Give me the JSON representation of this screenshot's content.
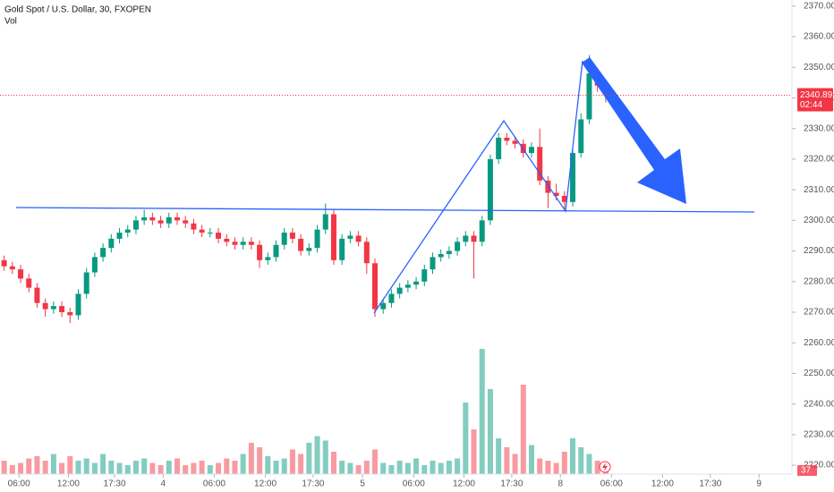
{
  "chart_data": {
    "type": "candlestick",
    "title": "Gold Spot / U.S. Dollar, 30, FXOPEN",
    "volume_label": "Vol",
    "countdown": "02:44",
    "up_color": "#089981",
    "down_color": "#f23645",
    "open": [
      2287,
      2285,
      2284,
      2281,
      2278,
      2273,
      2271,
      2272,
      2270,
      2269,
      2276,
      2283,
      2288,
      2291,
      2294,
      2296,
      2297,
      2300,
      2301,
      2300,
      2299,
      2301,
      2300,
      2299,
      2297,
      2296,
      2296,
      2294,
      2293,
      2292,
      2293,
      2292,
      2287,
      2288,
      2292,
      2296,
      2294,
      2290,
      2291,
      2297,
      2302,
      2287,
      2294,
      2295,
      2293,
      2286,
      2271,
      2273,
      2276,
      2278,
      2279,
      2280,
      2284,
      2288,
      2289,
      2290,
      2293,
      2295,
      2293,
      2300,
      2320,
      2327,
      2326,
      2325,
      2322,
      2324,
      2313,
      2309,
      2308,
      2306,
      2322,
      2333,
      2348,
      2344
    ],
    "high": [
      2288.5,
      2286.5,
      2285.5,
      2282.5,
      2279.5,
      2274.5,
      2273.5,
      2273.5,
      2271.5,
      2277.5,
      2284.5,
      2289.5,
      2292.5,
      2295.5,
      2297.5,
      2298.5,
      2301.5,
      2303.5,
      2302.5,
      2301.5,
      2302.5,
      2302.5,
      2301.5,
      2300.5,
      2298.5,
      2297.5,
      2297.5,
      2295.5,
      2294.5,
      2294.5,
      2294.5,
      2293.5,
      2289.5,
      2293.5,
      2297.5,
      2297.5,
      2295.5,
      2292.5,
      2298.5,
      2305.5,
      2303.5,
      2295.5,
      2296.5,
      2296.5,
      2294.5,
      2287.5,
      2274.5,
      2277.5,
      2279.5,
      2280.5,
      2281.5,
      2285.5,
      2289.5,
      2290.5,
      2291.5,
      2294.5,
      2296.5,
      2296.5,
      2301.5,
      2321.5,
      2328.5,
      2328.5,
      2327.5,
      2326.5,
      2325.5,
      2330,
      2314.5,
      2312,
      2309.5,
      2323.5,
      2335,
      2354,
      2349.5,
      2345.5
    ],
    "low": [
      2283.5,
      2282.5,
      2279.5,
      2276.5,
      2271.5,
      2268.5,
      2269.5,
      2268.5,
      2266.5,
      2267.5,
      2274.5,
      2281.5,
      2286.5,
      2289.5,
      2292.5,
      2294.5,
      2295.5,
      2298.5,
      2298.5,
      2297.5,
      2297.5,
      2298.5,
      2297.5,
      2295.5,
      2294.5,
      2294.5,
      2292.5,
      2291.5,
      2290.5,
      2290.5,
      2290.5,
      2284.5,
      2285.5,
      2286.5,
      2290.5,
      2292.5,
      2288.5,
      2288.5,
      2289.5,
      2295.5,
      2285.5,
      2285.5,
      2292.5,
      2291.5,
      2282.5,
      2268.5,
      2269.5,
      2271.5,
      2274.5,
      2276.5,
      2277.5,
      2278.5,
      2282.5,
      2286.5,
      2287.5,
      2288.5,
      2291.5,
      2281,
      2291.5,
      2298.5,
      2318.5,
      2324.5,
      2323.5,
      2320.5,
      2320.5,
      2311.5,
      2304,
      2306.5,
      2303,
      2304.5,
      2320.5,
      2331.5,
      2342,
      2338.5
    ],
    "close": [
      2285,
      2284,
      2281,
      2278,
      2273,
      2271,
      2272,
      2270,
      2269,
      2276,
      2283,
      2288,
      2291,
      2294,
      2296,
      2297,
      2300,
      2301,
      2300,
      2299,
      2301,
      2300,
      2299,
      2297,
      2296,
      2296,
      2294,
      2293,
      2292,
      2293,
      2292,
      2287,
      2288,
      2292,
      2296,
      2294,
      2290,
      2291,
      2297,
      2302,
      2287,
      2294,
      2295,
      2293,
      2286,
      2271,
      2273,
      2276,
      2278,
      2279,
      2280,
      2284,
      2288,
      2289,
      2290,
      2293,
      2295,
      2293,
      2300,
      2320,
      2327,
      2326,
      2325,
      2322,
      2324,
      2313,
      2309,
      2308,
      2306,
      2322,
      2333,
      2348,
      2344,
      2340.89
    ],
    "volume": [
      60,
      40,
      50,
      70,
      80,
      60,
      90,
      50,
      80,
      60,
      70,
      50,
      90,
      60,
      50,
      40,
      60,
      70,
      50,
      40,
      60,
      70,
      40,
      50,
      60,
      40,
      50,
      70,
      60,
      90,
      140,
      120,
      80,
      60,
      70,
      110,
      90,
      140,
      170,
      150,
      100,
      60,
      50,
      40,
      60,
      110,
      50,
      40,
      60,
      50,
      70,
      40,
      60,
      50,
      60,
      70,
      320,
      200,
      560,
      380,
      160,
      120,
      90,
      400,
      130,
      70,
      60,
      50,
      100,
      160,
      120,
      90,
      60,
      37
    ],
    "vol_lim": [
      0,
      1200
    ],
    "xlim": [
      -0.5,
      95.6
    ],
    "xticks": [
      {
        "value": 1.8,
        "label": "06:00"
      },
      {
        "value": 7.8,
        "label": "12:00"
      },
      {
        "value": 13.4,
        "label": "17:30"
      },
      {
        "value": 19.3,
        "label": "4"
      },
      {
        "value": 25.5,
        "label": "06:00"
      },
      {
        "value": 31.7,
        "label": "12:00"
      },
      {
        "value": 37.5,
        "label": "17:30"
      },
      {
        "value": 43.5,
        "label": "5"
      },
      {
        "value": 49.7,
        "label": "06:00"
      },
      {
        "value": 55.8,
        "label": "12:00"
      },
      {
        "value": 61.6,
        "label": "17:30"
      },
      {
        "value": 67.5,
        "label": "8"
      },
      {
        "value": 73.7,
        "label": "06:00"
      },
      {
        "value": 79.9,
        "label": "12:00"
      },
      {
        "value": 85.7,
        "label": "17:30"
      },
      {
        "value": 91.6,
        "label": "9"
      }
    ],
    "ylim": [
      2217.1,
      2372
    ],
    "yticks": [
      {
        "value": 2220,
        "label": "2220.00"
      },
      {
        "value": 2230,
        "label": "2230.00"
      },
      {
        "value": 2240,
        "label": "2240.00"
      },
      {
        "value": 2250,
        "label": "2250.00"
      },
      {
        "value": 2260,
        "label": "2260.00"
      },
      {
        "value": 2270,
        "label": "2270.00"
      },
      {
        "value": 2280,
        "label": "2280.00"
      },
      {
        "value": 2290,
        "label": "2290.00"
      },
      {
        "value": 2300,
        "label": "2300.00"
      },
      {
        "value": 2310,
        "label": "2310.00"
      },
      {
        "value": 2320,
        "label": "2320.00"
      },
      {
        "value": 2330,
        "label": "2330.00"
      },
      {
        "value": 2340,
        "label": "2340.00"
      },
      {
        "value": 2350,
        "label": "2350.00"
      },
      {
        "value": 2360,
        "label": "2360.00"
      },
      {
        "value": 2370,
        "label": "2370.00"
      }
    ]
  }
}
